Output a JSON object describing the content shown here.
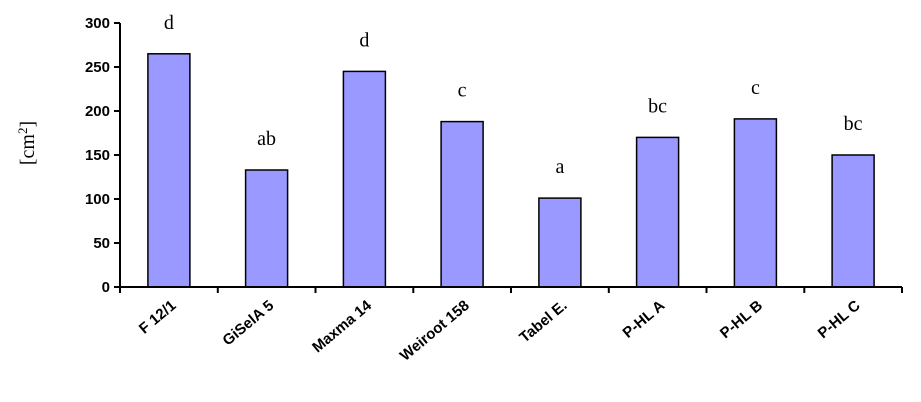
{
  "chart_data": {
    "type": "bar",
    "categories": [
      "F 12/1",
      "GiSelA 5",
      "Maxma 14",
      "Weiroot 158",
      "Tabel E.",
      "P-HL A",
      "P-HL B",
      "P-HL C"
    ],
    "values": [
      265,
      133,
      245,
      188,
      101,
      170,
      191,
      150
    ],
    "letters": [
      "d",
      "ab",
      "d",
      "c",
      "a",
      "bc",
      "c",
      "bc"
    ],
    "title": "",
    "xlabel": "",
    "ylabel_base": "[cm",
    "ylabel_sup": "2",
    "ylabel_end": "]",
    "ylim": [
      0,
      300
    ],
    "yticks": [
      0,
      50,
      100,
      150,
      200,
      250,
      300
    ],
    "grid": false,
    "legend": "none",
    "bar_color": "#9999FF"
  }
}
